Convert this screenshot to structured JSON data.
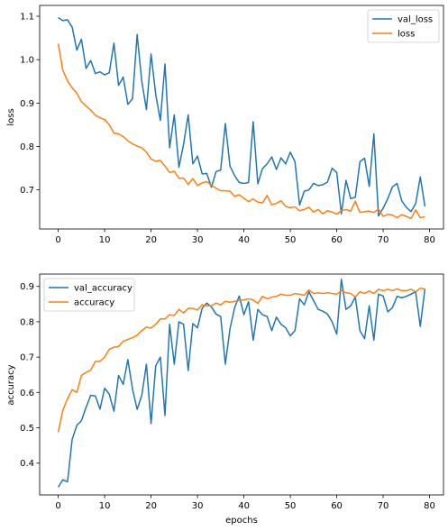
{
  "chart_data": [
    {
      "type": "line",
      "title": "",
      "xlabel": "",
      "ylabel": "loss",
      "xlim": [
        -4,
        83
      ],
      "ylim": [
        0.61,
        1.125
      ],
      "xticks": [
        0,
        10,
        20,
        30,
        40,
        50,
        60,
        70,
        80
      ],
      "yticks": [
        0.7,
        0.8,
        0.9,
        1.0,
        1.1
      ],
      "ytick_labels": [
        "0.7",
        "0.8",
        "0.9",
        "1.0",
        "1.1"
      ],
      "grid": false,
      "legend_position": "top-right",
      "series": [
        {
          "name": "val_loss",
          "color": "#1f77b4",
          "values": [
            1.097,
            1.09,
            1.092,
            1.075,
            1.022,
            1.047,
            0.98,
            0.998,
            0.968,
            0.972,
            0.965,
            0.97,
            1.038,
            0.941,
            0.96,
            0.897,
            0.91,
            1.058,
            0.95,
            0.885,
            1.013,
            0.92,
            0.86,
            0.99,
            0.797,
            0.873,
            0.752,
            0.805,
            0.873,
            0.76,
            0.778,
            0.737,
            0.738,
            0.706,
            0.742,
            0.746,
            0.853,
            0.755,
            0.733,
            0.717,
            0.715,
            0.717,
            0.857,
            0.714,
            0.749,
            0.76,
            0.776,
            0.747,
            0.774,
            0.76,
            0.787,
            0.765,
            0.665,
            0.697,
            0.7,
            0.715,
            0.71,
            0.712,
            0.718,
            0.75,
            0.74,
            0.645,
            0.722,
            0.68,
            0.683,
            0.765,
            0.773,
            0.708,
            0.829,
            0.64,
            0.658,
            0.68,
            0.707,
            0.715,
            0.675,
            0.66,
            0.65,
            0.668,
            0.73,
            0.662
          ]
        },
        {
          "name": "loss",
          "color": "#ff7f0e",
          "values": [
            1.037,
            0.975,
            0.951,
            0.935,
            0.923,
            0.903,
            0.893,
            0.884,
            0.872,
            0.866,
            0.862,
            0.85,
            0.831,
            0.829,
            0.823,
            0.813,
            0.806,
            0.801,
            0.797,
            0.787,
            0.771,
            0.766,
            0.768,
            0.755,
            0.74,
            0.743,
            0.727,
            0.727,
            0.713,
            0.726,
            0.71,
            0.716,
            0.719,
            0.711,
            0.704,
            0.698,
            0.698,
            0.697,
            0.685,
            0.689,
            0.681,
            0.673,
            0.679,
            0.672,
            0.67,
            0.687,
            0.666,
            0.669,
            0.675,
            0.662,
            0.659,
            0.661,
            0.652,
            0.655,
            0.66,
            0.649,
            0.655,
            0.645,
            0.652,
            0.649,
            0.644,
            0.652,
            0.655,
            0.651,
            0.674,
            0.648,
            0.65,
            0.651,
            0.648,
            0.656,
            0.639,
            0.644,
            0.642,
            0.636,
            0.643,
            0.639,
            0.634,
            0.654,
            0.636,
            0.638
          ]
        }
      ]
    },
    {
      "type": "line",
      "title": "",
      "xlabel": "epochs",
      "ylabel": "accuracy",
      "xlim": [
        -4,
        83
      ],
      "ylim": [
        0.31,
        0.935
      ],
      "xticks": [
        0,
        10,
        20,
        30,
        40,
        50,
        60,
        70,
        80
      ],
      "yticks": [
        0.4,
        0.5,
        0.6,
        0.7,
        0.8,
        0.9
      ],
      "ytick_labels": [
        "0.4",
        "0.5",
        "0.6",
        "0.7",
        "0.8",
        "0.9"
      ],
      "grid": false,
      "legend_position": "top-left",
      "series": [
        {
          "name": "val_accuracy",
          "color": "#1f77b4",
          "values": [
            0.332,
            0.353,
            0.347,
            0.467,
            0.507,
            0.52,
            0.558,
            0.592,
            0.59,
            0.553,
            0.612,
            0.595,
            0.547,
            0.648,
            0.623,
            0.693,
            0.61,
            0.552,
            0.592,
            0.68,
            0.512,
            0.675,
            0.7,
            0.535,
            0.793,
            0.68,
            0.8,
            0.793,
            0.662,
            0.795,
            0.783,
            0.838,
            0.853,
            0.842,
            0.822,
            0.815,
            0.68,
            0.78,
            0.84,
            0.873,
            0.82,
            0.857,
            0.748,
            0.835,
            0.82,
            0.815,
            0.775,
            0.813,
            0.793,
            0.783,
            0.76,
            0.775,
            0.865,
            0.848,
            0.885,
            0.86,
            0.835,
            0.83,
            0.822,
            0.8,
            0.765,
            0.92,
            0.835,
            0.845,
            0.87,
            0.775,
            0.752,
            0.845,
            0.748,
            0.878,
            0.873,
            0.828,
            0.84,
            0.872,
            0.868,
            0.872,
            0.878,
            0.885,
            0.787,
            0.893
          ]
        },
        {
          "name": "accuracy",
          "color": "#ff7f0e",
          "values": [
            0.488,
            0.55,
            0.582,
            0.608,
            0.6,
            0.648,
            0.657,
            0.663,
            0.688,
            0.688,
            0.7,
            0.722,
            0.728,
            0.73,
            0.745,
            0.75,
            0.755,
            0.762,
            0.775,
            0.785,
            0.782,
            0.793,
            0.808,
            0.808,
            0.82,
            0.818,
            0.835,
            0.825,
            0.838,
            0.838,
            0.833,
            0.848,
            0.845,
            0.845,
            0.853,
            0.848,
            0.858,
            0.855,
            0.858,
            0.86,
            0.862,
            0.865,
            0.862,
            0.852,
            0.872,
            0.865,
            0.87,
            0.872,
            0.878,
            0.875,
            0.875,
            0.88,
            0.878,
            0.875,
            0.89,
            0.88,
            0.882,
            0.88,
            0.882,
            0.88,
            0.878,
            0.888,
            0.882,
            0.88,
            0.87,
            0.885,
            0.88,
            0.887,
            0.88,
            0.892,
            0.888,
            0.892,
            0.888,
            0.893,
            0.888,
            0.888,
            0.892,
            0.885,
            0.895,
            0.893
          ]
        }
      ]
    }
  ]
}
